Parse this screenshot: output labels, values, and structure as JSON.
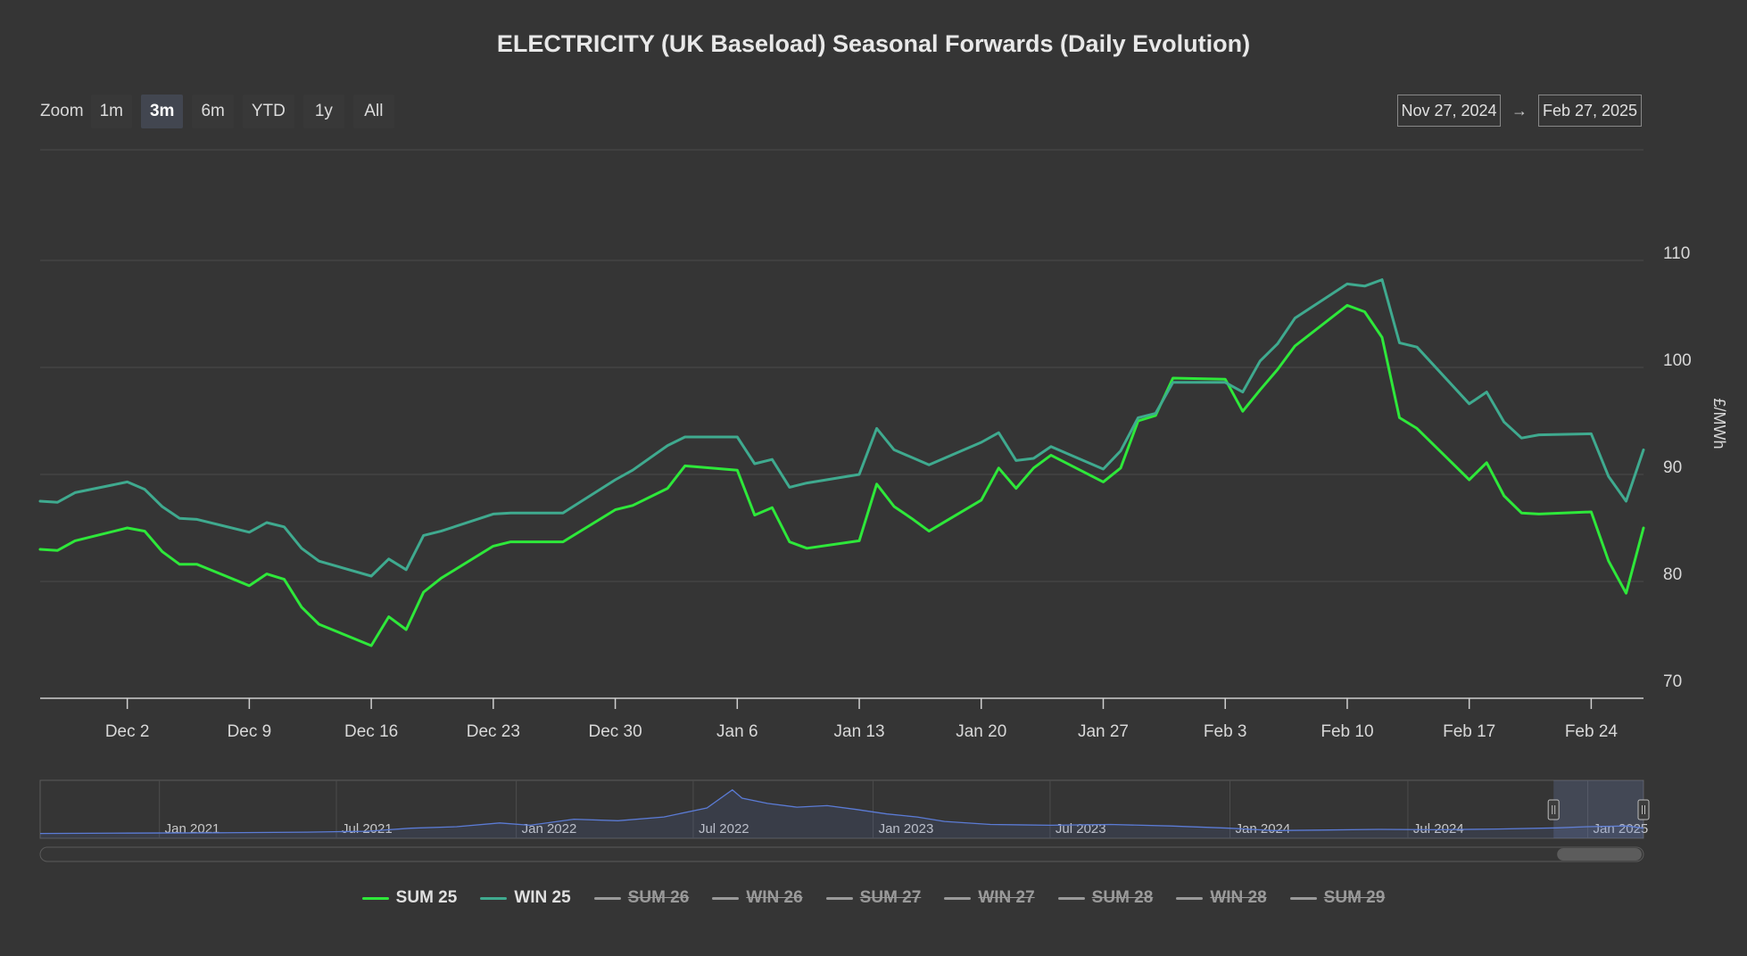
{
  "chart_data": {
    "type": "line",
    "title": "ELECTRICITY (UK Baseload) Seasonal Forwards (Daily Evolution)",
    "ylabel": "£/MWh",
    "ylim": [
      70,
      110
    ],
    "yticks": [
      70,
      80,
      90,
      100,
      110
    ],
    "x_range": [
      "2024-11-27",
      "2025-02-27"
    ],
    "xticks": [
      {
        "date": "2024-12-02",
        "label": "Dec 2"
      },
      {
        "date": "2024-12-09",
        "label": "Dec 9"
      },
      {
        "date": "2024-12-16",
        "label": "Dec 16"
      },
      {
        "date": "2024-12-23",
        "label": "Dec 23"
      },
      {
        "date": "2024-12-30",
        "label": "Dec 30"
      },
      {
        "date": "2025-01-06",
        "label": "Jan 6"
      },
      {
        "date": "2025-01-13",
        "label": "Jan 13"
      },
      {
        "date": "2025-01-20",
        "label": "Jan 20"
      },
      {
        "date": "2025-01-27",
        "label": "Jan 27"
      },
      {
        "date": "2025-02-03",
        "label": "Feb 3"
      },
      {
        "date": "2025-02-10",
        "label": "Feb 10"
      },
      {
        "date": "2025-02-17",
        "label": "Feb 17"
      },
      {
        "date": "2025-02-24",
        "label": "Feb 24"
      }
    ],
    "x": [
      "2024-11-27",
      "2024-11-28",
      "2024-11-29",
      "2024-12-02",
      "2024-12-03",
      "2024-12-04",
      "2024-12-05",
      "2024-12-06",
      "2024-12-09",
      "2024-12-10",
      "2024-12-11",
      "2024-12-12",
      "2024-12-13",
      "2024-12-16",
      "2024-12-17",
      "2024-12-18",
      "2024-12-19",
      "2024-12-20",
      "2024-12-23",
      "2024-12-24",
      "2024-12-27",
      "2024-12-30",
      "2024-12-31",
      "2025-01-02",
      "2025-01-03",
      "2025-01-06",
      "2025-01-07",
      "2025-01-08",
      "2025-01-09",
      "2025-01-10",
      "2025-01-13",
      "2025-01-14",
      "2025-01-15",
      "2025-01-16",
      "2025-01-17",
      "2025-01-20",
      "2025-01-21",
      "2025-01-22",
      "2025-01-23",
      "2025-01-24",
      "2025-01-27",
      "2025-01-28",
      "2025-01-29",
      "2025-01-30",
      "2025-01-31",
      "2025-02-03",
      "2025-02-04",
      "2025-02-05",
      "2025-02-06",
      "2025-02-07",
      "2025-02-10",
      "2025-02-11",
      "2025-02-12",
      "2025-02-13",
      "2025-02-14",
      "2025-02-17",
      "2025-02-18",
      "2025-02-19",
      "2025-02-20",
      "2025-02-21",
      "2025-02-24",
      "2025-02-25",
      "2025-02-26",
      "2025-02-27"
    ],
    "series": [
      {
        "name": "SUM 25",
        "color": "#2ee83a",
        "visible": true,
        "values": [
          83.0,
          82.9,
          83.8,
          85.0,
          84.7,
          82.8,
          81.6,
          81.6,
          79.6,
          80.7,
          80.2,
          77.6,
          76.0,
          74.0,
          76.7,
          75.5,
          79.0,
          80.3,
          83.3,
          83.7,
          83.7,
          86.7,
          87.1,
          88.7,
          90.8,
          90.4,
          86.2,
          86.9,
          83.7,
          83.1,
          83.8,
          89.1,
          87.0,
          85.9,
          84.7,
          87.6,
          90.6,
          88.7,
          90.6,
          91.8,
          89.3,
          90.6,
          95.0,
          95.5,
          99.0,
          98.9,
          95.9,
          97.9,
          99.8,
          102.0,
          105.8,
          105.2,
          102.8,
          95.3,
          94.3,
          89.5,
          91.1,
          88.0,
          86.4,
          86.3,
          86.5,
          81.9,
          78.9,
          85.0
        ]
      },
      {
        "name": "WIN 25",
        "color": "#3faa8f",
        "visible": true,
        "values": [
          87.5,
          87.4,
          88.3,
          89.3,
          88.6,
          87.0,
          85.9,
          85.8,
          84.6,
          85.5,
          85.1,
          83.1,
          81.9,
          80.5,
          82.1,
          81.1,
          84.3,
          84.7,
          86.3,
          86.4,
          86.4,
          89.5,
          90.4,
          92.7,
          93.5,
          93.5,
          91.0,
          91.4,
          88.8,
          89.2,
          90.0,
          94.3,
          92.3,
          91.6,
          90.9,
          93.0,
          93.9,
          91.3,
          91.5,
          92.6,
          90.5,
          92.2,
          95.3,
          95.7,
          98.6,
          98.6,
          97.7,
          100.6,
          102.2,
          104.6,
          107.8,
          107.6,
          108.2,
          102.3,
          101.9,
          96.6,
          97.7,
          94.9,
          93.4,
          93.7,
          93.8,
          89.8,
          87.5,
          92.3
        ]
      },
      {
        "name": "SUM 26",
        "visible": false
      },
      {
        "name": "WIN 26",
        "visible": false
      },
      {
        "name": "SUM 27",
        "visible": false
      },
      {
        "name": "WIN 27",
        "visible": false
      },
      {
        "name": "SUM 28",
        "visible": false
      },
      {
        "name": "WIN 28",
        "visible": false
      },
      {
        "name": "SUM 29",
        "visible": false
      }
    ],
    "navigator": {
      "x_range": [
        "2020-09-01",
        "2025-02-27"
      ],
      "ticks": [
        {
          "date": "2021-01-01",
          "label": "Jan 2021"
        },
        {
          "date": "2021-07-01",
          "label": "Jul 2021"
        },
        {
          "date": "2022-01-01",
          "label": "Jan 2022"
        },
        {
          "date": "2022-07-01",
          "label": "Jul 2022"
        },
        {
          "date": "2023-01-01",
          "label": "Jan 2023"
        },
        {
          "date": "2023-07-01",
          "label": "Jul 2023"
        },
        {
          "date": "2024-01-01",
          "label": "Jan 2024"
        },
        {
          "date": "2024-07-01",
          "label": "Jul 2024"
        },
        {
          "date": "2025-01-01",
          "label": "Jan 2025"
        }
      ],
      "ylim": [
        0,
        700
      ],
      "series": [
        [
          "2020-09-01",
          40
        ],
        [
          "2020-12-01",
          45
        ],
        [
          "2021-03-01",
          50
        ],
        [
          "2021-06-01",
          58
        ],
        [
          "2021-08-01",
          70
        ],
        [
          "2021-09-15",
          110
        ],
        [
          "2021-11-01",
          130
        ],
        [
          "2021-12-15",
          180
        ],
        [
          "2022-01-15",
          150
        ],
        [
          "2022-03-01",
          230
        ],
        [
          "2022-04-15",
          210
        ],
        [
          "2022-06-01",
          260
        ],
        [
          "2022-07-15",
          380
        ],
        [
          "2022-08-10",
          620
        ],
        [
          "2022-08-20",
          510
        ],
        [
          "2022-09-15",
          440
        ],
        [
          "2022-10-15",
          390
        ],
        [
          "2022-11-15",
          410
        ],
        [
          "2022-12-15",
          360
        ],
        [
          "2023-01-15",
          300
        ],
        [
          "2023-02-15",
          260
        ],
        [
          "2023-03-15",
          200
        ],
        [
          "2023-05-01",
          160
        ],
        [
          "2023-07-01",
          150
        ],
        [
          "2023-09-01",
          160
        ],
        [
          "2023-11-01",
          140
        ],
        [
          "2024-01-01",
          110
        ],
        [
          "2024-02-15",
          80
        ],
        [
          "2024-04-01",
          85
        ],
        [
          "2024-06-01",
          95
        ],
        [
          "2024-08-01",
          90
        ],
        [
          "2024-10-01",
          100
        ],
        [
          "2024-12-01",
          115
        ],
        [
          "2025-01-01",
          130
        ],
        [
          "2025-02-10",
          140
        ],
        [
          "2025-02-27",
          110
        ]
      ]
    }
  },
  "zoom": {
    "label": "Zoom",
    "buttons": [
      {
        "label": "1m",
        "active": false
      },
      {
        "label": "3m",
        "active": true
      },
      {
        "label": "6m",
        "active": false
      },
      {
        "label": "YTD",
        "active": false
      },
      {
        "label": "1y",
        "active": false
      },
      {
        "label": "All",
        "active": false
      }
    ]
  },
  "range_selector": {
    "from": "Nov 27, 2024",
    "to": "Feb 27, 2025",
    "arrow": "→"
  },
  "colors": {
    "background": "#353535",
    "grid": "#4a4a4a",
    "axis_text": "#d8d8d8",
    "navigator_line": "#5b7bd5",
    "hidden_legend": "#9a9a9a"
  }
}
